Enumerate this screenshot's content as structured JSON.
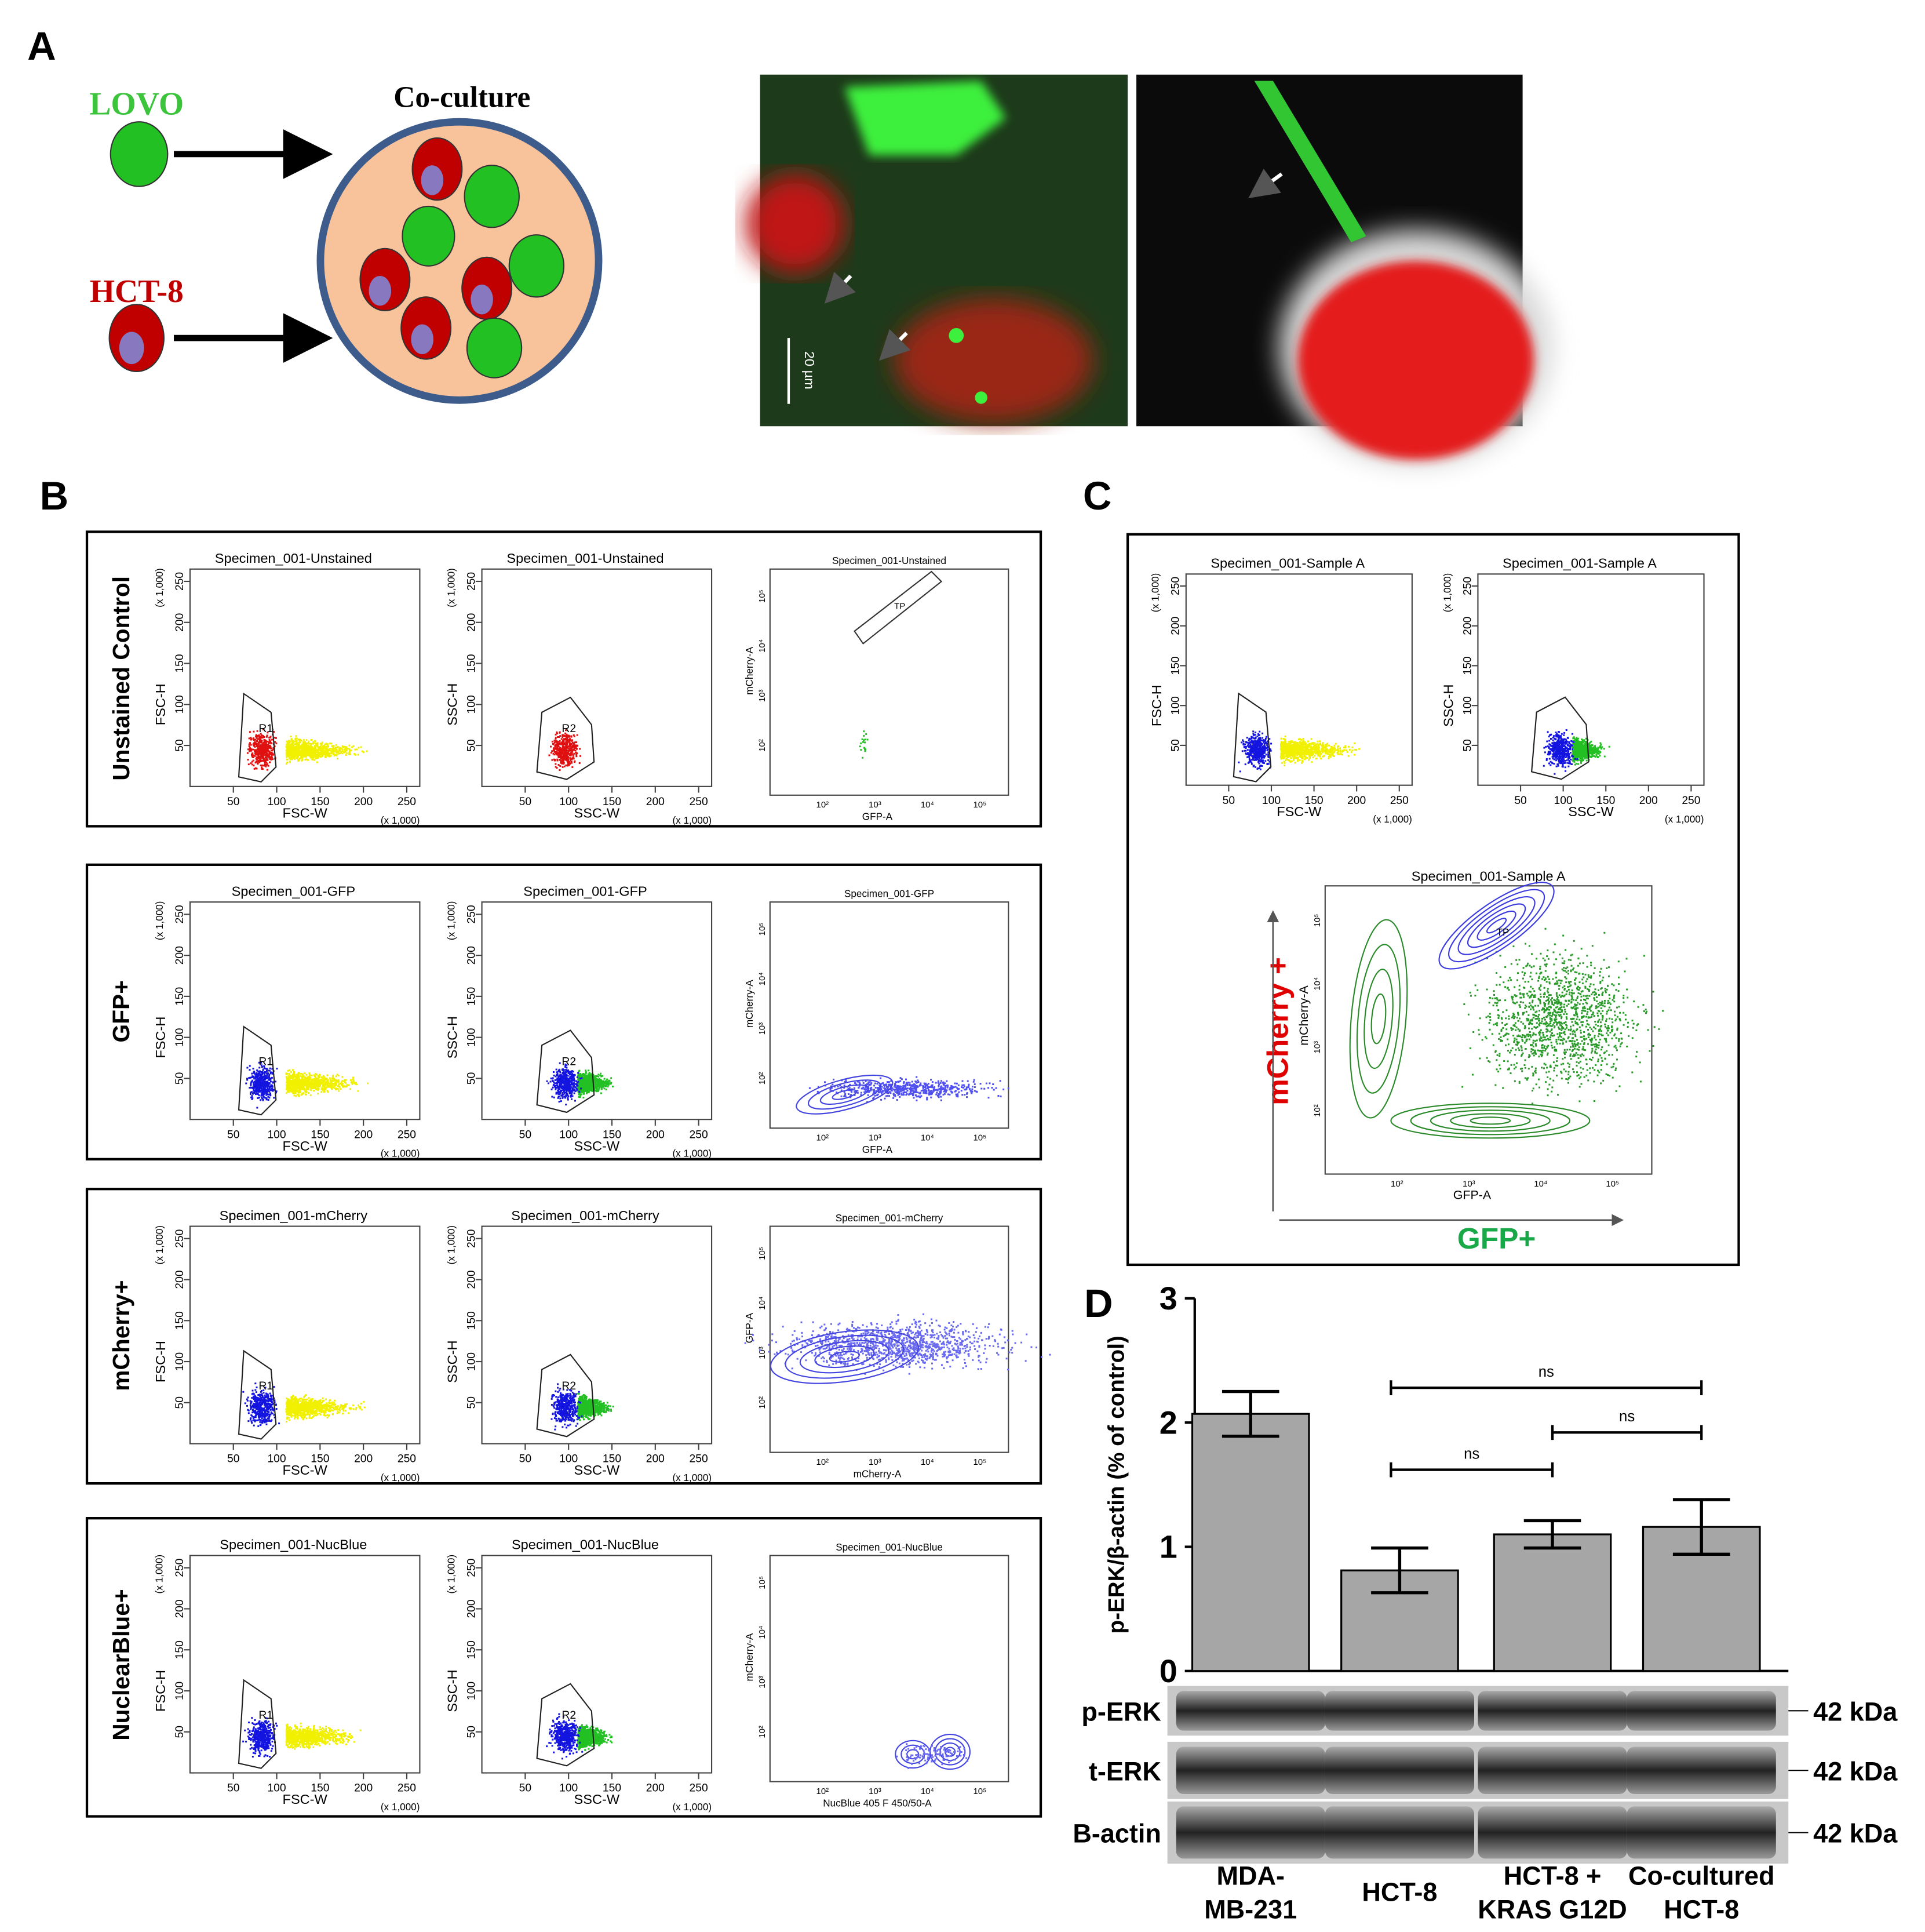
{
  "panel_a": {
    "label": "A",
    "lovo": "LOVO",
    "hct8": "HCT-8",
    "coculture": "Co-culture",
    "scale_bar": "20 µm"
  },
  "panel_b": {
    "label": "B",
    "rows": [
      {
        "label": "Unstained Control",
        "plots": [
          {
            "title": "Specimen_001-Unstained",
            "xlabel": "FSC-W",
            "ylabel": "FSC-H",
            "gate": "R1"
          },
          {
            "title": "Specimen_001-Unstained",
            "xlabel": "SSC-W",
            "ylabel": "SSC-H",
            "gate": "R2"
          },
          {
            "title": "Specimen_001-Unstained",
            "xlabel": "GFP-A",
            "ylabel": "mCherry-A",
            "gate": "TP"
          }
        ]
      },
      {
        "label": "GFP+",
        "plots": [
          {
            "title": "Specimen_001-GFP",
            "xlabel": "FSC-W",
            "ylabel": "FSC-H",
            "gate": "R1"
          },
          {
            "title": "Specimen_001-GFP",
            "xlabel": "SSC-W",
            "ylabel": "SSC-H",
            "gate": "R2"
          },
          {
            "title": "Specimen_001-GFP",
            "xlabel": "GFP-A",
            "ylabel": "mCherry-A"
          }
        ]
      },
      {
        "label": "mCherry+",
        "plots": [
          {
            "title": "Specimen_001-mCherry",
            "xlabel": "FSC-W",
            "ylabel": "FSC-H",
            "gate": "R1"
          },
          {
            "title": "Specimen_001-mCherry",
            "xlabel": "SSC-W",
            "ylabel": "SSC-H",
            "gate": "R2"
          },
          {
            "title": "Specimen_001-mCherry",
            "xlabel": "mCherry-A",
            "ylabel": "GFP-A"
          }
        ]
      },
      {
        "label": "NuclearBlue+",
        "plots": [
          {
            "title": "Specimen_001-NucBlue",
            "xlabel": "FSC-W",
            "ylabel": "FSC-H",
            "gate": "R1"
          },
          {
            "title": "Specimen_001-NucBlue",
            "xlabel": "SSC-W",
            "ylabel": "SSC-H",
            "gate": "R2"
          },
          {
            "title": "Specimen_001-NucBlue",
            "xlabel": "NucBlue 405 F 450/50-A",
            "ylabel": "mCherry-A"
          }
        ]
      }
    ]
  },
  "scatter_axis": {
    "lim": [
      0,
      265
    ],
    "ticks": [
      50,
      100,
      150,
      200,
      250
    ],
    "unit": "(x 1,000)"
  },
  "log_ticks": [
    "10²",
    "10³",
    "10⁴",
    "10⁵"
  ],
  "panel_c": {
    "label": "C",
    "plots": [
      {
        "title": "Specimen_001-Sample A",
        "xlabel": "FSC-W",
        "ylabel": "FSC-H"
      },
      {
        "title": "Specimen_001-Sample A",
        "xlabel": "SSC-W",
        "ylabel": "SSC-H"
      }
    ],
    "main": {
      "title": "Specimen_001-Sample A",
      "xlabel": "GFP-A",
      "ylabel": "mCherry-A",
      "gate": "TP"
    },
    "y_arrow_label": "mCherry +",
    "x_arrow_label": "GFP+"
  },
  "panel_d": {
    "label": "D",
    "type": "bar",
    "ylabel": "p-ERK/β-actin (% of control)",
    "categories": [
      [
        "MDA-",
        "MB-231"
      ],
      [
        "HCT-8"
      ],
      [
        "HCT-8 +",
        "KRAS G12D"
      ],
      [
        "Co-cultured",
        "HCT-8"
      ]
    ],
    "values": [
      2.07,
      0.81,
      1.1,
      1.16
    ],
    "errors": [
      0.18,
      0.18,
      0.11,
      0.22
    ],
    "ylim": [
      0,
      3
    ],
    "yticks": [
      0,
      1,
      2,
      3
    ],
    "color": "#a6a6a6",
    "comparisons": [
      {
        "label": "ns"
      },
      {
        "label": "ns"
      },
      {
        "label": "ns"
      }
    ],
    "blots": [
      {
        "label": "p-ERK",
        "size": "42 kDa"
      },
      {
        "label": "t-ERK",
        "size": "42 kDa"
      },
      {
        "label": "B-actin",
        "size": "42 kDa"
      }
    ]
  }
}
